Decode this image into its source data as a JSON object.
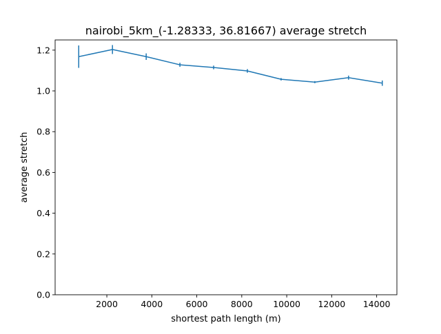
{
  "chart_data": {
    "type": "line",
    "title": "nairobi_5km_(-1.28333, 36.81667) average stretch",
    "xlabel": "shortest path length (m)",
    "ylabel": "average stretch",
    "xlim": [
      -300,
      14900
    ],
    "ylim": [
      0.0,
      1.25
    ],
    "xticks": [
      2000,
      4000,
      6000,
      8000,
      10000,
      12000,
      14000
    ],
    "xtick_labels": [
      "2000",
      "4000",
      "6000",
      "8000",
      "10000",
      "12000",
      "14000"
    ],
    "yticks": [
      0.0,
      0.2,
      0.4,
      0.6,
      0.8,
      1.0,
      1.2
    ],
    "ytick_labels": [
      "0.0",
      "0.2",
      "0.4",
      "0.6",
      "0.8",
      "1.0",
      "1.2"
    ],
    "grid": false,
    "series": [
      {
        "color": "#1f77b4",
        "x": [
          750,
          2250,
          3750,
          5250,
          6750,
          8250,
          9750,
          11250,
          12750,
          14250
        ],
        "y": [
          1.168,
          1.203,
          1.168,
          1.128,
          1.115,
          1.098,
          1.057,
          1.043,
          1.065,
          1.038
        ],
        "yerr": [
          0.055,
          0.022,
          0.016,
          0.01,
          0.009,
          0.009,
          0.006,
          0.005,
          0.01,
          0.013
        ]
      }
    ]
  }
}
